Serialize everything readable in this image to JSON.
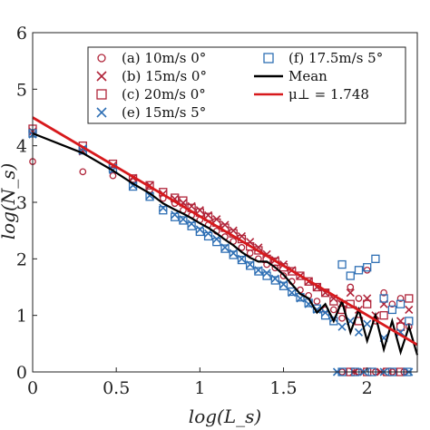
{
  "chart_data": {
    "type": "scatter",
    "xlabel": "log(L_s)",
    "ylabel": "log(N_s)",
    "xlim": [
      0,
      2.3
    ],
    "ylim": [
      0,
      6
    ],
    "xticks": [
      "0",
      "0.5",
      "1",
      "1.5",
      "2"
    ],
    "yticks": [
      "0",
      "1",
      "2",
      "3",
      "4",
      "5",
      "6"
    ],
    "grid": false,
    "legend_position": "top-right",
    "series": [
      {
        "name": "(a) 10m/s 0°",
        "marker": "circle",
        "color": "#b0253a",
        "points": [
          [
            0,
            3.72
          ],
          [
            0.3,
            3.54
          ],
          [
            0.48,
            3.47
          ],
          [
            0.6,
            3.38
          ],
          [
            0.7,
            3.22
          ],
          [
            0.78,
            3.07
          ],
          [
            0.85,
            2.98
          ],
          [
            0.9,
            2.86
          ],
          [
            0.95,
            2.77
          ],
          [
            1.0,
            2.69
          ],
          [
            1.05,
            2.6
          ],
          [
            1.1,
            2.49
          ],
          [
            1.15,
            2.39
          ],
          [
            1.2,
            2.31
          ],
          [
            1.25,
            2.2
          ],
          [
            1.3,
            2.1
          ],
          [
            1.35,
            2.0
          ],
          [
            1.4,
            1.9
          ],
          [
            1.45,
            1.84
          ],
          [
            1.5,
            1.7
          ],
          [
            1.55,
            1.6
          ],
          [
            1.6,
            1.45
          ],
          [
            1.65,
            1.35
          ],
          [
            1.7,
            1.25
          ],
          [
            1.75,
            1.1
          ],
          [
            1.8,
            1.1
          ],
          [
            1.85,
            0.95
          ],
          [
            1.9,
            1.5
          ],
          [
            1.95,
            1.3
          ],
          [
            2.0,
            1.8
          ],
          [
            2.05,
            0.9
          ],
          [
            2.1,
            1.4
          ],
          [
            2.15,
            1.2
          ],
          [
            2.2,
            1.3
          ],
          [
            2.25,
            0.8
          ],
          [
            1.85,
            0.0
          ],
          [
            1.95,
            0.0
          ],
          [
            2.05,
            0.0
          ],
          [
            2.15,
            0.0
          ],
          [
            2.22,
            0.0
          ]
        ]
      },
      {
        "name": "(b) 15m/s 0°",
        "marker": "x",
        "color": "#b0253a",
        "points": [
          [
            0,
            4.25
          ],
          [
            0.3,
            3.9
          ],
          [
            0.48,
            3.65
          ],
          [
            0.6,
            3.43
          ],
          [
            0.7,
            3.3
          ],
          [
            0.78,
            3.15
          ],
          [
            0.85,
            3.06
          ],
          [
            0.9,
            2.99
          ],
          [
            0.95,
            2.93
          ],
          [
            1.0,
            2.86
          ],
          [
            1.05,
            2.77
          ],
          [
            1.1,
            2.7
          ],
          [
            1.15,
            2.6
          ],
          [
            1.2,
            2.5
          ],
          [
            1.25,
            2.4
          ],
          [
            1.3,
            2.3
          ],
          [
            1.35,
            2.2
          ],
          [
            1.4,
            2.08
          ],
          [
            1.45,
            1.98
          ],
          [
            1.5,
            1.9
          ],
          [
            1.55,
            1.8
          ],
          [
            1.6,
            1.7
          ],
          [
            1.65,
            1.6
          ],
          [
            1.7,
            1.5
          ],
          [
            1.75,
            1.4
          ],
          [
            1.8,
            1.3
          ],
          [
            1.85,
            1.2
          ],
          [
            1.9,
            1.4
          ],
          [
            1.95,
            1.1
          ],
          [
            2.0,
            1.3
          ],
          [
            2.05,
            1.0
          ],
          [
            2.1,
            1.2
          ],
          [
            2.2,
            0.9
          ],
          [
            2.25,
            1.1
          ],
          [
            1.92,
            0.0
          ],
          [
            2.08,
            0.0
          ]
        ]
      },
      {
        "name": "(c) 20m/s 0°",
        "marker": "square",
        "color": "#b0253a",
        "points": [
          [
            0,
            4.3
          ],
          [
            0.3,
            4.0
          ],
          [
            0.48,
            3.68
          ],
          [
            0.6,
            3.42
          ],
          [
            0.7,
            3.3
          ],
          [
            0.78,
            3.18
          ],
          [
            0.85,
            3.08
          ],
          [
            0.9,
            3.03
          ],
          [
            0.95,
            2.9
          ],
          [
            1.0,
            2.82
          ],
          [
            1.05,
            2.74
          ],
          [
            1.1,
            2.64
          ],
          [
            1.15,
            2.55
          ],
          [
            1.2,
            2.45
          ],
          [
            1.25,
            2.35
          ],
          [
            1.3,
            2.22
          ],
          [
            1.35,
            2.15
          ],
          [
            1.4,
            2.0
          ],
          [
            1.45,
            1.95
          ],
          [
            1.5,
            1.85
          ],
          [
            1.55,
            1.78
          ],
          [
            1.6,
            1.7
          ],
          [
            1.65,
            1.6
          ],
          [
            1.7,
            1.5
          ],
          [
            1.75,
            1.4
          ],
          [
            1.8,
            1.25
          ],
          [
            1.85,
            1.1
          ],
          [
            1.9,
            1.2
          ],
          [
            1.95,
            0.9
          ],
          [
            2.0,
            1.2
          ],
          [
            2.1,
            1.0
          ],
          [
            2.2,
            0.8
          ],
          [
            2.25,
            1.3
          ],
          [
            1.9,
            0.0
          ],
          [
            2.0,
            0.0
          ],
          [
            2.12,
            0.0
          ],
          [
            2.2,
            0.0
          ]
        ]
      },
      {
        "name": "(e) 15m/s 5°",
        "marker": "x",
        "color": "#2e6fb4",
        "points": [
          [
            0,
            4.2
          ],
          [
            0.3,
            3.95
          ],
          [
            0.48,
            3.57
          ],
          [
            0.6,
            3.3
          ],
          [
            0.7,
            3.12
          ],
          [
            0.78,
            2.9
          ],
          [
            0.85,
            2.78
          ],
          [
            0.9,
            2.7
          ],
          [
            0.95,
            2.62
          ],
          [
            1.0,
            2.52
          ],
          [
            1.05,
            2.45
          ],
          [
            1.1,
            2.35
          ],
          [
            1.15,
            2.2
          ],
          [
            1.2,
            2.1
          ],
          [
            1.25,
            2.0
          ],
          [
            1.3,
            1.9
          ],
          [
            1.35,
            1.8
          ],
          [
            1.4,
            1.75
          ],
          [
            1.45,
            1.65
          ],
          [
            1.5,
            1.55
          ],
          [
            1.55,
            1.4
          ],
          [
            1.6,
            1.3
          ],
          [
            1.65,
            1.2
          ],
          [
            1.7,
            1.1
          ],
          [
            1.75,
            1.05
          ],
          [
            1.8,
            0.95
          ],
          [
            1.85,
            0.8
          ],
          [
            1.9,
            0.9
          ],
          [
            1.95,
            0.7
          ],
          [
            2.0,
            0.85
          ],
          [
            2.1,
            0.6
          ],
          [
            2.2,
            0.7
          ],
          [
            1.82,
            0.0
          ],
          [
            1.98,
            0.0
          ],
          [
            2.1,
            0.0
          ],
          [
            2.25,
            0.0
          ]
        ]
      },
      {
        "name": "(f) 17.5m/s 5°",
        "marker": "square",
        "color": "#2e6fb4",
        "points": [
          [
            0,
            4.22
          ],
          [
            0.3,
            3.92
          ],
          [
            0.48,
            3.6
          ],
          [
            0.6,
            3.28
          ],
          [
            0.7,
            3.1
          ],
          [
            0.78,
            2.86
          ],
          [
            0.85,
            2.74
          ],
          [
            0.9,
            2.68
          ],
          [
            0.95,
            2.58
          ],
          [
            1.0,
            2.48
          ],
          [
            1.05,
            2.4
          ],
          [
            1.1,
            2.3
          ],
          [
            1.15,
            2.18
          ],
          [
            1.2,
            2.07
          ],
          [
            1.25,
            1.98
          ],
          [
            1.3,
            1.88
          ],
          [
            1.35,
            1.78
          ],
          [
            1.4,
            1.7
          ],
          [
            1.45,
            1.62
          ],
          [
            1.5,
            1.52
          ],
          [
            1.55,
            1.42
          ],
          [
            1.6,
            1.32
          ],
          [
            1.65,
            1.22
          ],
          [
            1.7,
            1.12
          ],
          [
            1.75,
            1.0
          ],
          [
            1.8,
            0.9
          ],
          [
            1.85,
            1.9
          ],
          [
            1.9,
            1.7
          ],
          [
            1.95,
            1.8
          ],
          [
            2.0,
            1.85
          ],
          [
            2.05,
            2.0
          ],
          [
            2.1,
            1.3
          ],
          [
            2.15,
            1.1
          ],
          [
            2.2,
            1.2
          ],
          [
            2.25,
            0.9
          ],
          [
            1.85,
            0.0
          ],
          [
            1.93,
            0.0
          ],
          [
            2.03,
            0.0
          ],
          [
            2.15,
            0.0
          ],
          [
            2.24,
            0.0
          ]
        ]
      },
      {
        "name": "Mean",
        "marker": "line",
        "color": "#000000",
        "points": [
          [
            0,
            4.22
          ],
          [
            0.3,
            3.87
          ],
          [
            0.48,
            3.56
          ],
          [
            0.6,
            3.33
          ],
          [
            0.7,
            3.16
          ],
          [
            0.78,
            2.98
          ],
          [
            0.85,
            2.87
          ],
          [
            0.9,
            2.8
          ],
          [
            0.95,
            2.72
          ],
          [
            1.0,
            2.63
          ],
          [
            1.05,
            2.55
          ],
          [
            1.1,
            2.45
          ],
          [
            1.15,
            2.34
          ],
          [
            1.2,
            2.24
          ],
          [
            1.25,
            2.12
          ],
          [
            1.3,
            2.02
          ],
          [
            1.35,
            1.95
          ],
          [
            1.4,
            1.95
          ],
          [
            1.45,
            1.85
          ],
          [
            1.5,
            1.72
          ],
          [
            1.55,
            1.55
          ],
          [
            1.6,
            1.38
          ],
          [
            1.65,
            1.3
          ],
          [
            1.7,
            1.05
          ],
          [
            1.75,
            1.2
          ],
          [
            1.8,
            0.9
          ],
          [
            1.85,
            1.25
          ],
          [
            1.9,
            0.7
          ],
          [
            1.95,
            1.1
          ],
          [
            2.0,
            0.55
          ],
          [
            2.05,
            1.0
          ],
          [
            2.1,
            0.4
          ],
          [
            2.15,
            0.9
          ],
          [
            2.2,
            0.35
          ],
          [
            2.25,
            0.8
          ],
          [
            2.3,
            0.3
          ]
        ]
      },
      {
        "name": "μ⊥ = 1.748",
        "marker": "line",
        "color": "#d7191c",
        "points": [
          [
            0,
            4.5
          ],
          [
            2.3,
            0.48
          ]
        ]
      }
    ]
  },
  "legend": {
    "items": [
      {
        "label": "(a) 10m/s 0°",
        "marker": "circle",
        "color": "#b0253a"
      },
      {
        "label": "(b) 15m/s 0°",
        "marker": "x",
        "color": "#b0253a"
      },
      {
        "label": "(c) 20m/s 0°",
        "marker": "square",
        "color": "#b0253a"
      },
      {
        "label": "(e) 15m/s 5°",
        "marker": "x",
        "color": "#2e6fb4"
      },
      {
        "label": "(f) 17.5m/s 5°",
        "marker": "square",
        "color": "#2e6fb4"
      },
      {
        "label": "Mean",
        "marker": "line",
        "color": "#000000"
      },
      {
        "label": "μ⊥ = 1.748",
        "marker": "line",
        "color": "#d7191c"
      }
    ]
  }
}
